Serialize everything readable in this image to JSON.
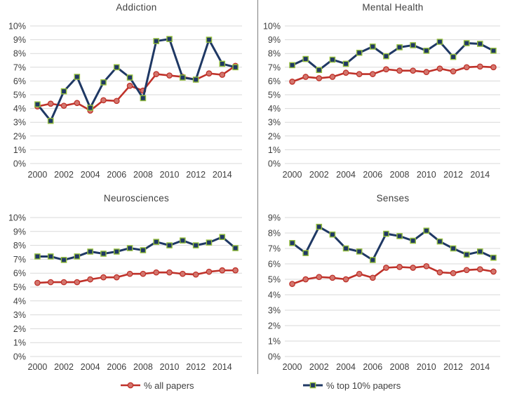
{
  "style": {
    "background": "#ffffff",
    "grid_color": "#d9d9d9",
    "divider_color": "#7f7f7f",
    "text_color": "#404040",
    "all_papers_line": "#bf3129",
    "all_papers_marker_fill": "#d3766e",
    "top10_line": "#1f3864",
    "top10_marker_edge": "#94be3d"
  },
  "legend": {
    "items": [
      {
        "label": "% all papers",
        "marker": "circle"
      },
      {
        "label": "% top 10% papers",
        "marker": "square"
      }
    ]
  },
  "chart_data": [
    {
      "type": "line",
      "title": "Addiction",
      "x": [
        2000,
        2001,
        2002,
        2003,
        2004,
        2005,
        2006,
        2007,
        2008,
        2009,
        2010,
        2011,
        2012,
        2013,
        2014,
        2015
      ],
      "xticklabels": [
        "2000",
        "2002",
        "2004",
        "2006",
        "2008",
        "2010",
        "2012",
        "2014"
      ],
      "ylim": [
        0,
        10
      ],
      "yticklabels": [
        "0%",
        "1%",
        "2%",
        "3%",
        "4%",
        "5%",
        "6%",
        "7%",
        "8%",
        "9%",
        "10%"
      ],
      "grid": true,
      "series": [
        {
          "name": "% all papers",
          "marker": "circle",
          "values": [
            4.15,
            4.35,
            4.2,
            4.4,
            3.85,
            4.6,
            4.55,
            5.65,
            5.3,
            6.5,
            6.4,
            6.3,
            6.1,
            6.55,
            6.45,
            7.1
          ]
        },
        {
          "name": "% top 10% papers",
          "marker": "square",
          "values": [
            4.3,
            3.1,
            5.25,
            6.3,
            4.05,
            5.9,
            7.0,
            6.25,
            4.75,
            8.9,
            9.05,
            6.25,
            6.1,
            9.0,
            7.25,
            7.0
          ]
        }
      ]
    },
    {
      "type": "line",
      "title": "Mental Health",
      "x": [
        2000,
        2001,
        2002,
        2003,
        2004,
        2005,
        2006,
        2007,
        2008,
        2009,
        2010,
        2011,
        2012,
        2013,
        2014,
        2015
      ],
      "xticklabels": [
        "2000",
        "2002",
        "2004",
        "2006",
        "2008",
        "2010",
        "2012",
        "2014"
      ],
      "ylim": [
        0,
        10
      ],
      "yticklabels": [
        "0%",
        "1%",
        "2%",
        "3%",
        "4%",
        "5%",
        "6%",
        "7%",
        "8%",
        "9%",
        "10%"
      ],
      "grid": true,
      "series": [
        {
          "name": "% all papers",
          "marker": "circle",
          "values": [
            5.95,
            6.3,
            6.2,
            6.3,
            6.6,
            6.5,
            6.5,
            6.85,
            6.75,
            6.75,
            6.65,
            6.9,
            6.7,
            7.0,
            7.05,
            7.0
          ]
        },
        {
          "name": "% top 10% papers",
          "marker": "square",
          "values": [
            7.15,
            7.6,
            6.8,
            7.55,
            7.25,
            8.05,
            8.5,
            7.8,
            8.45,
            8.6,
            8.2,
            8.85,
            7.75,
            8.75,
            8.7,
            8.2
          ]
        }
      ]
    },
    {
      "type": "line",
      "title": "Neurosciences",
      "x": [
        2000,
        2001,
        2002,
        2003,
        2004,
        2005,
        2006,
        2007,
        2008,
        2009,
        2010,
        2011,
        2012,
        2013,
        2014,
        2015
      ],
      "xticklabels": [
        "2000",
        "2002",
        "2004",
        "2006",
        "2008",
        "2010",
        "2012",
        "2014"
      ],
      "ylim": [
        0,
        10
      ],
      "yticklabels": [
        "0%",
        "1%",
        "2%",
        "3%",
        "4%",
        "5%",
        "6%",
        "7%",
        "8%",
        "9%",
        "10%"
      ],
      "grid": true,
      "series": [
        {
          "name": "% all papers",
          "marker": "circle",
          "values": [
            5.3,
            5.35,
            5.35,
            5.35,
            5.55,
            5.7,
            5.7,
            5.95,
            5.95,
            6.05,
            6.05,
            5.95,
            5.9,
            6.1,
            6.2,
            6.2
          ]
        },
        {
          "name": "% top 10% papers",
          "marker": "square",
          "values": [
            7.2,
            7.2,
            6.95,
            7.2,
            7.55,
            7.4,
            7.55,
            7.8,
            7.65,
            8.25,
            8.0,
            8.35,
            8.0,
            8.2,
            8.6,
            7.8
          ]
        }
      ]
    },
    {
      "type": "line",
      "title": "Senses",
      "x": [
        2000,
        2001,
        2002,
        2003,
        2004,
        2005,
        2006,
        2007,
        2008,
        2009,
        2010,
        2011,
        2012,
        2013,
        2014,
        2015
      ],
      "xticklabels": [
        "2000",
        "2002",
        "2004",
        "2006",
        "2008",
        "2010",
        "2012",
        "2014"
      ],
      "ylim": [
        0,
        9
      ],
      "yticklabels": [
        "0%",
        "1%",
        "2%",
        "3%",
        "4%",
        "5%",
        "6%",
        "7%",
        "8%",
        "9%"
      ],
      "grid": true,
      "series": [
        {
          "name": "% all papers",
          "marker": "circle",
          "values": [
            4.7,
            5.0,
            5.15,
            5.1,
            5.0,
            5.35,
            5.1,
            5.75,
            5.8,
            5.75,
            5.85,
            5.45,
            5.4,
            5.6,
            5.65,
            5.5
          ]
        },
        {
          "name": "% top 10% papers",
          "marker": "square",
          "values": [
            7.35,
            6.7,
            8.4,
            7.9,
            7.0,
            6.8,
            6.25,
            7.95,
            7.8,
            7.5,
            8.15,
            7.45,
            7.0,
            6.6,
            6.8,
            6.4
          ]
        }
      ]
    }
  ]
}
